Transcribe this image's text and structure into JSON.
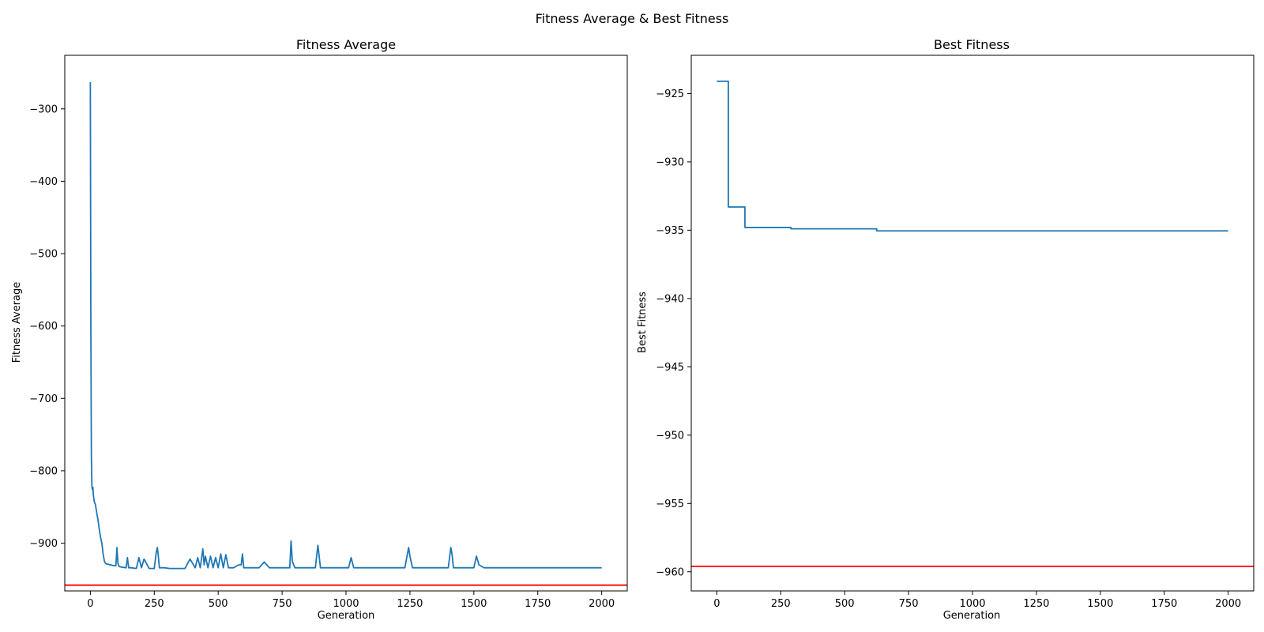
{
  "figure": {
    "suptitle": "Fitness Average & Best Fitness"
  },
  "colors": {
    "line": "#1f77b4",
    "reference": "#ff0000",
    "axes": "#000000",
    "background": "#ffffff"
  },
  "chart_data": [
    {
      "type": "line",
      "title": "Fitness Average",
      "xlabel": "Generation",
      "ylabel": "Fitness Average",
      "xlim": [
        -100,
        2100
      ],
      "ylim": [
        -966,
        -226
      ],
      "xticks": [
        0,
        250,
        500,
        750,
        1000,
        1250,
        1500,
        1750,
        2000
      ],
      "yticks": [
        -900,
        -800,
        -700,
        -600,
        -500,
        -400,
        -300
      ],
      "xtick_labels": [
        "0",
        "250",
        "500",
        "750",
        "1000",
        "1250",
        "1500",
        "1750",
        "2000"
      ],
      "ytick_labels": [
        "−900",
        "−800",
        "−700",
        "−600",
        "−500",
        "−400",
        "−300"
      ],
      "grid": false,
      "reference_line": {
        "y": -958,
        "color": "#ff0000"
      },
      "series": [
        {
          "color": "#1f77b4",
          "x": [
            0,
            2,
            4,
            6,
            8,
            10,
            12,
            15,
            18,
            20,
            25,
            30,
            35,
            40,
            45,
            50,
            55,
            60,
            65,
            70,
            75,
            80,
            90,
            100,
            104,
            108,
            112,
            120,
            140,
            145,
            150,
            160,
            180,
            190,
            200,
            210,
            230,
            250,
            258,
            262,
            266,
            270,
            290,
            310,
            340,
            370,
            390,
            410,
            420,
            430,
            440,
            445,
            450,
            460,
            470,
            480,
            490,
            500,
            510,
            520,
            530,
            540,
            560,
            580,
            590,
            595,
            600,
            620,
            640,
            660,
            680,
            700,
            720,
            740,
            760,
            780,
            785,
            790,
            800,
            820,
            840,
            860,
            880,
            890,
            895,
            900,
            910,
            930,
            960,
            990,
            1010,
            1020,
            1030,
            1050,
            1080,
            1100,
            1120,
            1150,
            1180,
            1200,
            1230,
            1245,
            1250,
            1260,
            1280,
            1300,
            1320,
            1340,
            1360,
            1380,
            1400,
            1410,
            1415,
            1420,
            1440,
            1460,
            1480,
            1500,
            1510,
            1520,
            1540,
            1560,
            1580,
            1600,
            1620,
            1640,
            1660,
            1680,
            1700,
            1720,
            1740,
            1760,
            1780,
            1800,
            1820,
            1840,
            1860,
            1880,
            1900,
            1920,
            1940,
            1960,
            1980,
            2000
          ],
          "y": [
            -263,
            -600,
            -780,
            -820,
            -826,
            -823,
            -834,
            -842,
            -845,
            -847,
            -858,
            -868,
            -881,
            -892,
            -900,
            -915,
            -925,
            -928,
            -929,
            -929,
            -930,
            -930,
            -931,
            -931,
            -906,
            -928,
            -932,
            -933,
            -934,
            -920,
            -934,
            -934,
            -935,
            -920,
            -934,
            -922,
            -935,
            -935,
            -912,
            -906,
            -918,
            -934,
            -934,
            -935,
            -935,
            -935,
            -922,
            -934,
            -920,
            -934,
            -908,
            -930,
            -918,
            -934,
            -918,
            -934,
            -920,
            -934,
            -915,
            -934,
            -916,
            -934,
            -934,
            -930,
            -930,
            -915,
            -934,
            -934,
            -934,
            -934,
            -926,
            -934,
            -934,
            -934,
            -934,
            -934,
            -897,
            -925,
            -934,
            -934,
            -934,
            -934,
            -934,
            -903,
            -918,
            -934,
            -934,
            -934,
            -934,
            -934,
            -934,
            -920,
            -934,
            -934,
            -934,
            -934,
            -934,
            -934,
            -934,
            -934,
            -934,
            -906,
            -918,
            -934,
            -934,
            -934,
            -934,
            -934,
            -934,
            -934,
            -934,
            -906,
            -916,
            -934,
            -934,
            -934,
            -934,
            -934,
            -918,
            -930,
            -934,
            -934,
            -934,
            -934,
            -934,
            -934,
            -934,
            -934,
            -934,
            -934,
            -934,
            -934,
            -934,
            -934,
            -934,
            -934,
            -934,
            -934,
            -934,
            -934,
            -934,
            -934,
            -934,
            -934
          ]
        }
      ]
    },
    {
      "type": "line",
      "title": "Best Fitness",
      "xlabel": "Generation",
      "ylabel": "Best Fitness",
      "xlim": [
        -100,
        2100
      ],
      "ylim": [
        -961.4,
        -922.2
      ],
      "xticks": [
        0,
        250,
        500,
        750,
        1000,
        1250,
        1500,
        1750,
        2000
      ],
      "yticks": [
        -960,
        -955,
        -950,
        -945,
        -940,
        -935,
        -930,
        -925
      ],
      "xtick_labels": [
        "0",
        "250",
        "500",
        "750",
        "1000",
        "1250",
        "1500",
        "1750",
        "2000"
      ],
      "ytick_labels": [
        "−960",
        "−955",
        "−950",
        "−945",
        "−940",
        "−935",
        "−930",
        "−925"
      ],
      "grid": false,
      "reference_line": {
        "y": -959.6,
        "color": "#ff0000"
      },
      "series": [
        {
          "color": "#1f77b4",
          "x": [
            0,
            45,
            45,
            110,
            110,
            290,
            290,
            625,
            625,
            2000
          ],
          "y": [
            -924.1,
            -924.1,
            -933.3,
            -933.3,
            -934.8,
            -934.8,
            -934.9,
            -934.9,
            -935.05,
            -935.05
          ]
        }
      ]
    }
  ]
}
